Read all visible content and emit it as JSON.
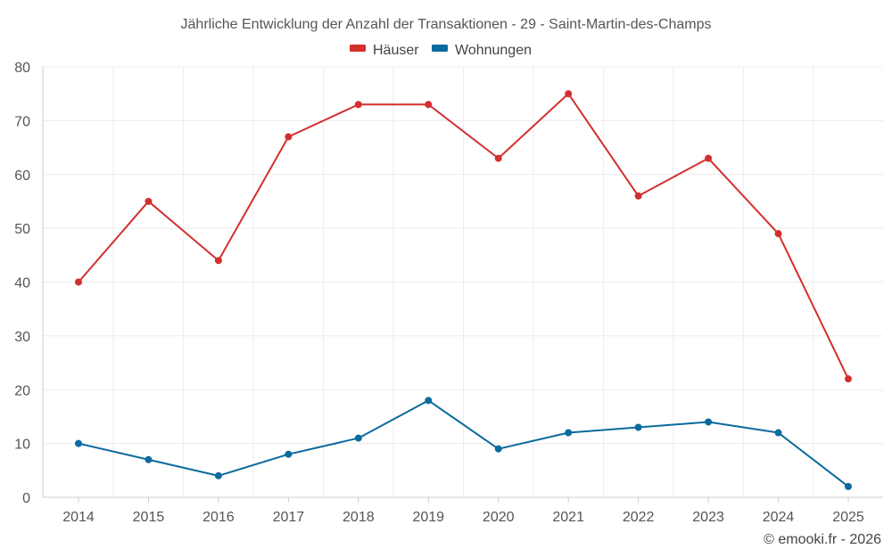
{
  "chart_data": {
    "type": "line",
    "title": "Jährliche Entwicklung der Anzahl der Transaktionen - 29 - Saint-Martin-des-Champs",
    "categories": [
      "2014",
      "2015",
      "2016",
      "2017",
      "2018",
      "2019",
      "2020",
      "2021",
      "2022",
      "2023",
      "2024",
      "2025"
    ],
    "series": [
      {
        "name": "Häuser",
        "color": "#d32f2f",
        "values": [
          40,
          55,
          44,
          67,
          73,
          73,
          63,
          75,
          56,
          63,
          49,
          22
        ]
      },
      {
        "name": "Wohnungen",
        "color": "#0b6a9e",
        "values": [
          10,
          7,
          4,
          8,
          11,
          18,
          9,
          12,
          13,
          14,
          12,
          2
        ]
      }
    ],
    "ylim": [
      0,
      80
    ],
    "yticks": [
      "0",
      "10",
      "20",
      "30",
      "40",
      "50",
      "60",
      "70",
      "80"
    ],
    "xlabel": "",
    "ylabel": "",
    "grid": true,
    "legend": "top-center"
  },
  "footer": {
    "copyright": "© emooki.fr - 2026"
  }
}
